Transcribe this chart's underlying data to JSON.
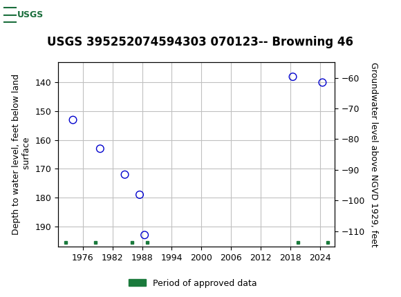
{
  "title": "USGS 395252074594303 070123-- Browning 46",
  "ylabel_left": "Depth to water level, feet below land\n surface",
  "ylabel_right": "Groundwater level above NGVD 1929, feet",
  "xlim": [
    1971,
    2027
  ],
  "ylim_left_bottom": 197,
  "ylim_left_top": 133,
  "ylim_right_bottom": -115,
  "ylim_right_top": -55,
  "xticks": [
    1976,
    1982,
    1988,
    1994,
    2000,
    2006,
    2012,
    2018,
    2024
  ],
  "yticks_left": [
    140,
    150,
    160,
    170,
    180,
    190
  ],
  "yticks_right": [
    -60,
    -70,
    -80,
    -90,
    -100,
    -110
  ],
  "data_x": [
    1974.0,
    1979.5,
    1984.5,
    1987.5,
    1988.5,
    2018.5,
    2024.5
  ],
  "data_y": [
    153,
    163,
    172,
    179,
    193,
    138,
    140
  ],
  "green_squares_x": [
    1972.5,
    1978.5,
    1986.0,
    1989.0,
    2019.5,
    2025.5
  ],
  "green_square_y": 195.5,
  "marker_color": "#0000cd",
  "marker_size": 7,
  "grid_color": "#c0c0c0",
  "background_color": "#ffffff",
  "header_color": "#1a6e3c",
  "title_fontsize": 12,
  "axis_fontsize": 9,
  "tick_fontsize": 9,
  "legend_label": "Period of approved data",
  "legend_color": "#1a7a3c"
}
